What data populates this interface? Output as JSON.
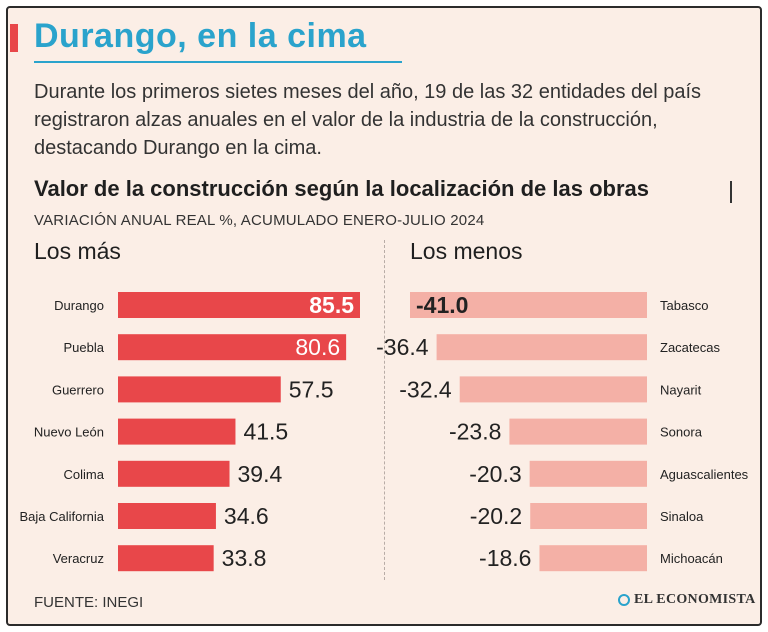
{
  "header": {
    "title": "Durango, en la cima",
    "intro": "Durante los primeros sietes meses del año, 19 de las 32 entidades del país registraron alzas anuales en el valor de la industria de la construcción, destacando Durango en la cima.",
    "chart_title": "Valor de la construcción según la localización de las obras",
    "chart_caption": "VARIACIÓN ANUAL REAL %, ACUMULADO ENERO-JULIO 2024"
  },
  "sections": {
    "left_label": "Los más",
    "right_label": "Los menos"
  },
  "footer": {
    "source": "FUENTE: INEGI",
    "logo": "EL ECONOMISTA"
  },
  "colors": {
    "accent": "#2aa3cc",
    "bar_top": "#e8474a",
    "bar_bottom": "#f4b0a6",
    "background": "#fbeee6"
  },
  "chart_data": [
    {
      "type": "bar",
      "orientation": "horizontal",
      "categories": [
        "Durango",
        "Puebla",
        "Guerrero",
        "Nuevo León",
        "Colima",
        "Baja California",
        "Veracruz"
      ],
      "values": [
        85.5,
        80.6,
        57.5,
        41.5,
        39.4,
        34.6,
        33.8
      ],
      "labels": [
        "85.5",
        "80.6",
        "57.5",
        "41.5",
        "39.4",
        "34.6",
        "33.8"
      ],
      "title": "Los más",
      "xlim": [
        0,
        85.5
      ]
    },
    {
      "type": "bar",
      "orientation": "horizontal",
      "categories": [
        "Tabasco",
        "Zacatecas",
        "Nayarit",
        "Sonora",
        "Aguascalientes",
        "Sinaloa",
        "Michoacán"
      ],
      "values": [
        -41.0,
        -36.4,
        -32.4,
        -23.8,
        -20.3,
        -20.2,
        -18.6
      ],
      "labels": [
        "-41.0",
        "-36.4",
        "-32.4",
        "-23.8",
        "-20.3",
        "-20.2",
        "-18.6"
      ],
      "title": "Los menos",
      "xlim": [
        -41.0,
        0
      ]
    }
  ]
}
